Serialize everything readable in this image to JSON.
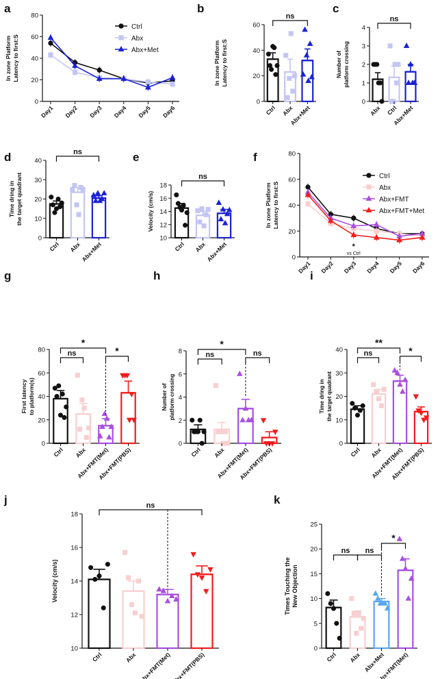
{
  "colors": {
    "ctrl": "#111111",
    "abx_light": "#c3c6f2",
    "abx_pink": "#f8cfd0",
    "blue": "#1a22d4",
    "purple": "#a84fe0",
    "red": "#f21c1c",
    "lightblue": "#5aa7f0"
  },
  "chart_data": [
    {
      "panel": "a",
      "type": "line",
      "ylabel": "In zone Platform Latency to first:S",
      "xlabel": "",
      "x": [
        "Day1",
        "Day2",
        "Day3",
        "Day4",
        "Day5",
        "Day6"
      ],
      "ylim": [
        0,
        80
      ],
      "yticks": [
        0,
        20,
        40,
        60,
        80
      ],
      "series": [
        {
          "name": "Ctrl",
          "color": "ctrl",
          "marker": "circle",
          "values": [
            54,
            36,
            29,
            21,
            17,
            19
          ]
        },
        {
          "name": "Abx",
          "color": "abx_light",
          "marker": "square",
          "values": [
            43,
            27,
            22,
            21,
            18,
            16
          ]
        },
        {
          "name": "Abx+Met",
          "color": "blue",
          "marker": "triangle",
          "values": [
            59,
            33,
            21,
            21,
            13,
            22
          ]
        }
      ],
      "legend": "top-right"
    },
    {
      "panel": "b",
      "type": "bar",
      "ylabel": "In zone Platform Latency to first:S",
      "categories": [
        "Ctrl",
        "Abx",
        "Abx+Met"
      ],
      "values": [
        33,
        23,
        32
      ],
      "errors": [
        5,
        10,
        9
      ],
      "colors": [
        "ctrl",
        "abx_light",
        "blue"
      ],
      "markers": [
        "circle",
        "square",
        "triangle"
      ],
      "points": [
        [
          37,
          28,
          25,
          43,
          42,
          21,
          28
        ],
        [
          36,
          3,
          18,
          53,
          8,
          20
        ],
        [
          21,
          56,
          36,
          16,
          45,
          19
        ]
      ],
      "ylim": [
        0,
        60
      ],
      "yticks": [
        0,
        20,
        40,
        60
      ],
      "brackets": [
        {
          "from": 0,
          "to": 2,
          "label": "ns"
        }
      ]
    },
    {
      "panel": "c",
      "type": "bar",
      "ylabel": "Number of platform crossing",
      "categories": [
        "Abx",
        "Ctrl",
        "Abx+Met"
      ],
      "values": [
        1.2,
        1.3,
        1.6
      ],
      "errors": [
        0.35,
        0.6,
        0.4
      ],
      "colors": [
        "ctrl",
        "abx_light",
        "blue"
      ],
      "markers": [
        "circle",
        "square",
        "triangle"
      ],
      "points": [
        [
          2,
          2,
          2,
          1,
          1,
          0
        ],
        [
          3,
          0,
          0,
          2,
          1,
          2
        ],
        [
          3,
          1,
          2,
          1,
          1
        ]
      ],
      "ylim": [
        0,
        4
      ],
      "yticks": [
        0,
        1,
        2,
        3,
        4
      ],
      "brackets": [
        {
          "from": 0,
          "to": 2,
          "label": "ns"
        }
      ]
    },
    {
      "panel": "d",
      "type": "bar",
      "ylabel": "Time dring in the target quadrant",
      "categories": [
        "Ctrl",
        "Abx",
        "Abx+Met"
      ],
      "values": [
        17.5,
        23.5,
        20.5
      ],
      "errors": [
        1.5,
        2.5,
        1.2
      ],
      "colors": [
        "ctrl",
        "abx_light",
        "blue"
      ],
      "markers": [
        "circle",
        "square",
        "triangle"
      ],
      "points": [
        [
          21,
          17,
          13,
          15,
          20,
          16,
          18
        ],
        [
          25,
          27,
          17,
          12,
          26,
          25
        ],
        [
          22,
          19,
          23,
          19,
          20,
          23
        ]
      ],
      "ylim": [
        0,
        40
      ],
      "yticks": [
        0,
        10,
        20,
        30,
        40
      ],
      "brackets": [
        {
          "from": 0,
          "to": 2,
          "label": "ns"
        }
      ]
    },
    {
      "panel": "e",
      "type": "bar",
      "ylabel": "Velocity (cm/s)",
      "categories": [
        "Ctrl",
        "Abx",
        "Abx+Met"
      ],
      "values": [
        14.5,
        13.4,
        13.7
      ],
      "errors": [
        0.7,
        0.6,
        0.6
      ],
      "colors": [
        "ctrl",
        "abx_light",
        "blue"
      ],
      "markers": [
        "circle",
        "square",
        "triangle"
      ],
      "points": [
        [
          16.5,
          15.2,
          14.6,
          14.2,
          14.9,
          11.9,
          13.8
        ],
        [
          14.1,
          12.4,
          14.4,
          11.8,
          13.5,
          14.3
        ],
        [
          15.3,
          12.8,
          14.3,
          12.2,
          13.6,
          14.2
        ]
      ],
      "ylim": [
        10,
        18
      ],
      "yticks": [
        10,
        12,
        14,
        16,
        18
      ],
      "brackets": [
        {
          "from": 0,
          "to": 2,
          "label": "ns"
        }
      ]
    },
    {
      "panel": "f",
      "type": "line",
      "ylabel": "In zone Platform Latency to first:S",
      "x": [
        "Day1",
        "Day2",
        "Day3",
        "Day4",
        "Day5",
        "Day6"
      ],
      "ylim": [
        0,
        80
      ],
      "yticks": [
        0,
        20,
        40,
        60,
        80
      ],
      "series": [
        {
          "name": "Ctrl",
          "color": "ctrl",
          "marker": "circle",
          "values": [
            54,
            33,
            30,
            22,
            18,
            18
          ]
        },
        {
          "name": "Abx",
          "color": "abx_pink",
          "marker": "square",
          "values": [
            41,
            26,
            22,
            20,
            18,
            16
          ]
        },
        {
          "name": "Abx+FMT",
          "color": "purple",
          "marker": "triangle",
          "values": [
            50,
            30,
            24,
            25,
            16,
            18
          ]
        },
        {
          "name": "Abx+FMT+Met",
          "color": "red",
          "marker": "triangle",
          "values": [
            48,
            28,
            17,
            15,
            13,
            15
          ]
        }
      ],
      "annotations": [
        {
          "x": "Day3",
          "text": "*"
        },
        {
          "x": "Day3",
          "text": "vs Ctrl"
        }
      ],
      "legend": "top-right"
    },
    {
      "panel": "g",
      "type": "bar",
      "ylabel": "First latency to platform(s)",
      "categories": [
        "Ctrl",
        "Abx",
        "Abx+FMT(Met)",
        "Abx+FMT(PBS)"
      ],
      "values": [
        38,
        25,
        15,
        43
      ],
      "errors": [
        7,
        9,
        6,
        10
      ],
      "colors": [
        "ctrl",
        "abx_pink",
        "purple",
        "red"
      ],
      "markers": [
        "circle",
        "square",
        "triangle",
        "triangle_down"
      ],
      "points": [
        [
          47,
          40,
          49,
          24,
          42,
          22,
          31
        ],
        [
          58,
          12,
          37,
          30,
          5,
          13
        ],
        [
          6,
          14,
          25,
          21,
          5,
          14
        ],
        [
          58,
          58,
          58,
          20,
          42,
          20
        ]
      ],
      "ylim": [
        0,
        80
      ],
      "yticks": [
        0,
        20,
        40,
        60,
        80
      ],
      "brackets": [
        {
          "from": 0,
          "to": 1,
          "label": "ns"
        },
        {
          "from": 0,
          "to": 2,
          "label": "*"
        },
        {
          "from": 2,
          "to": 3,
          "label": "*"
        }
      ]
    },
    {
      "panel": "h",
      "type": "bar",
      "ylabel": "Number of platform crossing",
      "categories": [
        "Ctrl",
        "Abx",
        "Abx+FMT(Met)",
        "Abx+FMT(PBS)"
      ],
      "values": [
        1.2,
        1.2,
        3.0,
        0.5
      ],
      "errors": [
        0.4,
        0.6,
        0.8,
        0.5
      ],
      "colors": [
        "ctrl",
        "abx_pink",
        "purple",
        "red"
      ],
      "markers": [
        "circle",
        "square",
        "triangle",
        "triangle_down"
      ],
      "points": [
        [
          2,
          1,
          1,
          1,
          2,
          0,
          1
        ],
        [
          5,
          1,
          1,
          0,
          1,
          0
        ],
        [
          6,
          2,
          3,
          2,
          2
        ],
        [
          2,
          0,
          0,
          0,
          1
        ]
      ],
      "ylim": [
        0,
        8
      ],
      "yticks": [
        0,
        2,
        4,
        6,
        8
      ],
      "brackets": [
        {
          "from": 0,
          "to": 1,
          "label": "ns"
        },
        {
          "from": 0,
          "to": 2,
          "label": "*"
        },
        {
          "from": 2,
          "to": 3,
          "label": "ns"
        }
      ]
    },
    {
      "panel": "i",
      "type": "bar",
      "ylabel": "Time dring in the target quadrant",
      "categories": [
        "Ctrl",
        "Abx",
        "Abx+FMT(Met)",
        "Abx+FMT(PBS)"
      ],
      "values": [
        14.5,
        21,
        26.5,
        13.5
      ],
      "errors": [
        1.5,
        2,
        2.5,
        2
      ],
      "colors": [
        "ctrl",
        "abx_pink",
        "purple",
        "red"
      ],
      "markers": [
        "circle",
        "square",
        "triangle",
        "triangle_down"
      ],
      "points": [
        [
          17,
          15,
          12,
          14,
          16
        ],
        [
          25,
          22,
          19,
          16,
          23
        ],
        [
          31,
          30,
          25,
          22,
          27
        ],
        [
          20,
          14,
          13,
          10,
          11
        ]
      ],
      "ylim": [
        0,
        40
      ],
      "yticks": [
        0,
        10,
        20,
        30,
        40
      ],
      "brackets": [
        {
          "from": 0,
          "to": 1,
          "label": "ns"
        },
        {
          "from": 0,
          "to": 2,
          "label": "**"
        },
        {
          "from": 2,
          "to": 3,
          "label": "*"
        }
      ]
    },
    {
      "panel": "j",
      "type": "bar",
      "ylabel": "Velocity (cm/s)",
      "categories": [
        "Ctrl",
        "Abx",
        "Abx+FMT(Met)",
        "Abx+FMT(PBS)"
      ],
      "values": [
        14.1,
        13.4,
        13.2,
        14.4
      ],
      "errors": [
        0.6,
        0.6,
        0.3,
        0.5
      ],
      "colors": [
        "ctrl",
        "abx_pink",
        "purple",
        "red"
      ],
      "markers": [
        "circle",
        "square",
        "triangle",
        "triangle_down"
      ],
      "points": [
        [
          14.8,
          14.1,
          14.3,
          12.4,
          15.0
        ],
        [
          15.7,
          14.2,
          12.6,
          12.1,
          14.0,
          11.9
        ],
        [
          13.5,
          13.4,
          12.8,
          13.1,
          12.9
        ],
        [
          15.6,
          14.4,
          14.2,
          13.4,
          14.7
        ]
      ],
      "ylim": [
        10,
        18
      ],
      "yticks": [
        10,
        12,
        14,
        16,
        18
      ],
      "brackets": [
        {
          "from": 0,
          "to": 3,
          "label": "ns"
        }
      ]
    },
    {
      "panel": "k",
      "type": "bar",
      "ylabel": "Times Touching the New Objection",
      "categories": [
        "Ctrl",
        "Abx",
        "Abx+Met",
        "Abx+FMT(Met)"
      ],
      "values": [
        8.2,
        6.3,
        9.4,
        15.7
      ],
      "errors": [
        1.5,
        1.2,
        0.6,
        2.3
      ],
      "colors": [
        "ctrl",
        "abx_pink",
        "lightblue",
        "purple"
      ],
      "markers": [
        "circle",
        "square",
        "triangle",
        "triangle"
      ],
      "points": [
        [
          11,
          9,
          8,
          5,
          2
        ],
        [
          10,
          7,
          3,
          7,
          4,
          6
        ],
        [
          11,
          10,
          9,
          9,
          9,
          8
        ],
        [
          22,
          18,
          16,
          10,
          14
        ]
      ],
      "ylim": [
        0,
        25
      ],
      "yticks": [
        0,
        5,
        10,
        15,
        20,
        25
      ],
      "brackets": [
        {
          "from": 0,
          "to": 1,
          "label": "ns"
        },
        {
          "from": 1,
          "to": 2,
          "label": "ns"
        },
        {
          "from": 2,
          "to": 3,
          "label": "*"
        }
      ]
    }
  ]
}
